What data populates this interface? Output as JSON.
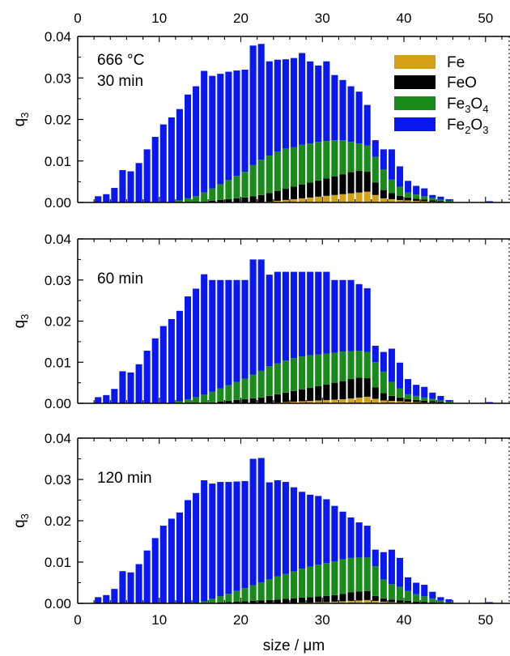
{
  "colors": {
    "Fe": "#d4a017",
    "FeO": "#000000",
    "Fe3O4": "#1a8a1a",
    "Fe2O3": "#0a18f0"
  },
  "x_tick_labels": [
    "0",
    "10",
    "20",
    "30",
    "40",
    "50"
  ],
  "y_tick_labels": [
    "0.00",
    "0.01",
    "0.02",
    "0.03",
    "0.04"
  ],
  "top_tick_labels": [
    "0",
    "10",
    "20",
    "30",
    "40",
    "50"
  ],
  "xlabel": "size / μm",
  "ylabel_main": "q",
  "ylabel_sub": "3",
  "legend": [
    {
      "key": "Fe",
      "main": "Fe"
    },
    {
      "key": "FeO",
      "main": "FeO"
    },
    {
      "key": "Fe3O4",
      "main": "Fe",
      "sub1": "3",
      "mid": "O",
      "sub2": "4"
    },
    {
      "key": "Fe2O3",
      "main": "Fe",
      "sub1": "2",
      "mid": "O",
      "sub2": "3"
    }
  ],
  "chart_data": [
    {
      "type": "bar",
      "stacked": true,
      "annotation_line1": "666 °C",
      "annotation_line2": "30 min",
      "xlim": [
        0,
        53
      ],
      "ylim": [
        0,
        0.04
      ],
      "x": [
        2.5,
        3.5,
        4.5,
        5.5,
        6.5,
        7.5,
        8.5,
        9.5,
        10.5,
        11.5,
        12.5,
        13.5,
        14.5,
        15.5,
        16.5,
        17.5,
        18.5,
        19.5,
        20.5,
        21.5,
        22.5,
        23.5,
        24.5,
        25.5,
        26.5,
        27.5,
        28.5,
        29.5,
        30.5,
        31.5,
        32.5,
        33.5,
        34.5,
        35.5,
        36.5,
        37.5,
        38.5,
        39.5,
        40.5,
        41.5,
        42.5,
        43.5,
        44.5,
        45.5,
        46.5,
        47.5,
        48.5,
        49.5,
        50.5,
        51.5,
        52.5
      ],
      "series": [
        {
          "key": "Fe",
          "values": [
            0,
            0,
            0,
            0,
            0,
            0,
            0,
            0,
            0,
            0,
            0,
            0,
            0,
            0,
            0,
            0,
            0,
            0,
            0,
            0,
            0,
            0.0002,
            0.0004,
            0.0006,
            0.0008,
            0.001,
            0.0012,
            0.0014,
            0.0016,
            0.0018,
            0.002,
            0.0022,
            0.0024,
            0.0026,
            0.0018,
            0.001,
            0.0008,
            0.0006,
            0.0005,
            0.0004,
            0.0003,
            0.0002,
            0.0001,
            0,
            0,
            0,
            0,
            0,
            0,
            0,
            0
          ]
        },
        {
          "key": "FeO",
          "values": [
            0,
            0,
            0,
            0,
            0,
            0,
            0,
            0,
            0,
            0,
            0,
            0,
            0,
            0.0002,
            0.0004,
            0.0006,
            0.0008,
            0.001,
            0.0012,
            0.0015,
            0.0018,
            0.0021,
            0.0024,
            0.0027,
            0.003,
            0.0033,
            0.0036,
            0.0039,
            0.0042,
            0.0045,
            0.0048,
            0.0051,
            0.0052,
            0.0048,
            0.003,
            0.002,
            0.0015,
            0.001,
            0.0007,
            0.0005,
            0.0004,
            0.0003,
            0.0002,
            0.0001,
            0,
            0,
            0,
            0,
            0,
            0,
            0
          ]
        },
        {
          "key": "Fe3O4",
          "values": [
            0,
            0,
            0,
            0,
            0,
            0,
            0,
            0,
            0,
            0,
            0.0005,
            0.001,
            0.0015,
            0.0022,
            0.003,
            0.0038,
            0.0046,
            0.0054,
            0.0062,
            0.0075,
            0.0085,
            0.009,
            0.0095,
            0.0097,
            0.0095,
            0.0096,
            0.0094,
            0.0093,
            0.009,
            0.0087,
            0.0082,
            0.0073,
            0.0066,
            0.0063,
            0.0062,
            0.005,
            0.0032,
            0.0022,
            0.0012,
            0.001,
            0.0008,
            0.0006,
            0.0004,
            0.0003,
            0.0001,
            0,
            0,
            0,
            0,
            0,
            0
          ]
        },
        {
          "key": "Fe2O3",
          "values": [
            0.0015,
            0.002,
            0.0035,
            0.0078,
            0.0075,
            0.0095,
            0.0128,
            0.0158,
            0.0188,
            0.0205,
            0.022,
            0.025,
            0.0265,
            0.0293,
            0.0271,
            0.0266,
            0.0261,
            0.0254,
            0.0246,
            0.0288,
            0.0279,
            0.0227,
            0.0221,
            0.0215,
            0.0215,
            0.0221,
            0.0198,
            0.0184,
            0.0192,
            0.0157,
            0.0145,
            0.0134,
            0.0125,
            0.0098,
            0.004,
            0.0048,
            0.0073,
            0.0049,
            0.0028,
            0.0021,
            0.0019,
            0.0007,
            0.0007,
            0.0004,
            0,
            0,
            0,
            0,
            0.0003,
            0,
            0
          ]
        }
      ]
    },
    {
      "type": "bar",
      "stacked": true,
      "annotation_line1": "",
      "annotation_line2": "60 min",
      "xlim": [
        0,
        53
      ],
      "ylim": [
        0,
        0.04
      ],
      "x": [
        2.5,
        3.5,
        4.5,
        5.5,
        6.5,
        7.5,
        8.5,
        9.5,
        10.5,
        11.5,
        12.5,
        13.5,
        14.5,
        15.5,
        16.5,
        17.5,
        18.5,
        19.5,
        20.5,
        21.5,
        22.5,
        23.5,
        24.5,
        25.5,
        26.5,
        27.5,
        28.5,
        29.5,
        30.5,
        31.5,
        32.5,
        33.5,
        34.5,
        35.5,
        36.5,
        37.5,
        38.5,
        39.5,
        40.5,
        41.5,
        42.5,
        43.5,
        44.5,
        45.5,
        46.5,
        47.5,
        48.5,
        49.5,
        50.5,
        51.5,
        52.5
      ],
      "series": [
        {
          "key": "Fe",
          "values": [
            0,
            0,
            0,
            0,
            0,
            0,
            0,
            0,
            0,
            0,
            0,
            0,
            0,
            0,
            0,
            0,
            0,
            0,
            0,
            0,
            0,
            0.0001,
            0.0002,
            0.0003,
            0.0004,
            0.0005,
            0.0006,
            0.0007,
            0.0008,
            0.0009,
            0.001,
            0.0012,
            0.0014,
            0.0016,
            0.0011,
            0.0007,
            0.0006,
            0.0005,
            0.0004,
            0.0003,
            0.0002,
            0.0002,
            0.0001,
            0,
            0,
            0,
            0,
            0,
            0,
            0,
            0
          ]
        },
        {
          "key": "FeO",
          "values": [
            0,
            0,
            0,
            0,
            0,
            0,
            0,
            0,
            0,
            0,
            0,
            0,
            0,
            0.0001,
            0.0002,
            0.0004,
            0.0006,
            0.0008,
            0.001,
            0.0012,
            0.0014,
            0.0017,
            0.002,
            0.0023,
            0.0026,
            0.0029,
            0.0032,
            0.0035,
            0.0038,
            0.0041,
            0.0044,
            0.0047,
            0.0048,
            0.0045,
            0.0028,
            0.0018,
            0.0012,
            0.0009,
            0.0006,
            0.0005,
            0.0004,
            0.0003,
            0.0002,
            0.0001,
            0,
            0,
            0,
            0,
            0,
            0,
            0
          ]
        },
        {
          "key": "Fe3O4",
          "values": [
            0,
            0,
            0,
            0,
            0,
            0,
            0,
            0,
            0,
            0,
            0.0005,
            0.001,
            0.0015,
            0.002,
            0.0026,
            0.0032,
            0.0038,
            0.0044,
            0.005,
            0.0058,
            0.0065,
            0.0072,
            0.0075,
            0.0078,
            0.008,
            0.008,
            0.0079,
            0.0077,
            0.0075,
            0.0073,
            0.0072,
            0.0068,
            0.0066,
            0.0064,
            0.0061,
            0.0052,
            0.0034,
            0.0022,
            0.0012,
            0.001,
            0.0008,
            0.0006,
            0.0004,
            0.0003,
            0.0001,
            0,
            0,
            0,
            0,
            0,
            0
          ]
        },
        {
          "key": "Fe2O3",
          "values": [
            0.0015,
            0.002,
            0.0035,
            0.0078,
            0.0075,
            0.0095,
            0.0128,
            0.0158,
            0.0188,
            0.0205,
            0.022,
            0.025,
            0.0264,
            0.0293,
            0.0272,
            0.0264,
            0.0256,
            0.0248,
            0.024,
            0.028,
            0.0271,
            0.0223,
            0.0223,
            0.0216,
            0.021,
            0.0206,
            0.0203,
            0.0201,
            0.0199,
            0.0177,
            0.0174,
            0.0173,
            0.0162,
            0.0155,
            0.004,
            0.0048,
            0.0081,
            0.0063,
            0.0037,
            0.0027,
            0.0026,
            0.0015,
            0.0011,
            0.0004,
            0,
            0,
            0,
            0,
            0.0003,
            0,
            0
          ]
        }
      ]
    },
    {
      "type": "bar",
      "stacked": true,
      "annotation_line1": "",
      "annotation_line2": "120 min",
      "xlim": [
        0,
        53
      ],
      "ylim": [
        0,
        0.04
      ],
      "x": [
        2.5,
        3.5,
        4.5,
        5.5,
        6.5,
        7.5,
        8.5,
        9.5,
        10.5,
        11.5,
        12.5,
        13.5,
        14.5,
        15.5,
        16.5,
        17.5,
        18.5,
        19.5,
        20.5,
        21.5,
        22.5,
        23.5,
        24.5,
        25.5,
        26.5,
        27.5,
        28.5,
        29.5,
        30.5,
        31.5,
        32.5,
        33.5,
        34.5,
        35.5,
        36.5,
        37.5,
        38.5,
        39.5,
        40.5,
        41.5,
        42.5,
        43.5,
        44.5,
        45.5,
        46.5,
        47.5,
        48.5,
        49.5,
        50.5,
        51.5,
        52.5
      ],
      "series": [
        {
          "key": "Fe",
          "values": [
            0,
            0,
            0,
            0,
            0,
            0,
            0,
            0,
            0,
            0,
            0,
            0,
            0,
            0,
            0,
            0,
            0,
            0,
            0,
            0,
            0,
            0,
            0,
            0.0001,
            0.0001,
            0.0002,
            0.0002,
            0.0003,
            0.0003,
            0.0004,
            0.0005,
            0.0006,
            0.0007,
            0.0008,
            0.0006,
            0.0004,
            0.0003,
            0.0002,
            0.0002,
            0.0001,
            0.0001,
            0.0001,
            0,
            0,
            0,
            0,
            0,
            0,
            0,
            0,
            0
          ]
        },
        {
          "key": "FeO",
          "values": [
            0,
            0,
            0,
            0,
            0,
            0,
            0,
            0,
            0,
            0,
            0,
            0,
            0,
            0,
            0.0001,
            0.0002,
            0.0003,
            0.0004,
            0.0005,
            0.0006,
            0.0007,
            0.0008,
            0.0009,
            0.001,
            0.0011,
            0.0012,
            0.0013,
            0.0014,
            0.0015,
            0.0016,
            0.0018,
            0.0021,
            0.0022,
            0.0022,
            0.0012,
            0.0008,
            0.0006,
            0.0005,
            0.0004,
            0.0003,
            0.0002,
            0.0001,
            0.0001,
            0,
            0,
            0,
            0,
            0,
            0,
            0,
            0
          ]
        },
        {
          "key": "Fe3O4",
          "values": [
            0,
            0,
            0,
            0,
            0,
            0,
            0,
            0,
            0,
            0,
            0,
            0,
            0.0002,
            0.0005,
            0.001,
            0.0015,
            0.002,
            0.0026,
            0.0032,
            0.0038,
            0.0044,
            0.005,
            0.0056,
            0.006,
            0.0065,
            0.007,
            0.0074,
            0.0077,
            0.008,
            0.0082,
            0.0084,
            0.0083,
            0.0082,
            0.0081,
            0.0072,
            0.0046,
            0.0038,
            0.0033,
            0.0024,
            0.0018,
            0.0014,
            0.001,
            0.0006,
            0.0003,
            0.0001,
            0,
            0,
            0,
            0,
            0,
            0
          ]
        },
        {
          "key": "Fe2O3",
          "values": [
            0.0015,
            0.002,
            0.0035,
            0.0078,
            0.0075,
            0.0095,
            0.0128,
            0.0158,
            0.0188,
            0.0205,
            0.022,
            0.025,
            0.0265,
            0.0293,
            0.0279,
            0.0277,
            0.0271,
            0.0265,
            0.0259,
            0.0306,
            0.0301,
            0.0235,
            0.0233,
            0.0223,
            0.0204,
            0.0186,
            0.0174,
            0.0166,
            0.0154,
            0.0134,
            0.0115,
            0.0098,
            0.0085,
            0.0077,
            0.004,
            0.0066,
            0.0083,
            0.007,
            0.0033,
            0.0028,
            0.0028,
            0.0016,
            0.0008,
            0.0007,
            0,
            0,
            0,
            0,
            0.0003,
            0,
            0
          ]
        }
      ]
    }
  ]
}
